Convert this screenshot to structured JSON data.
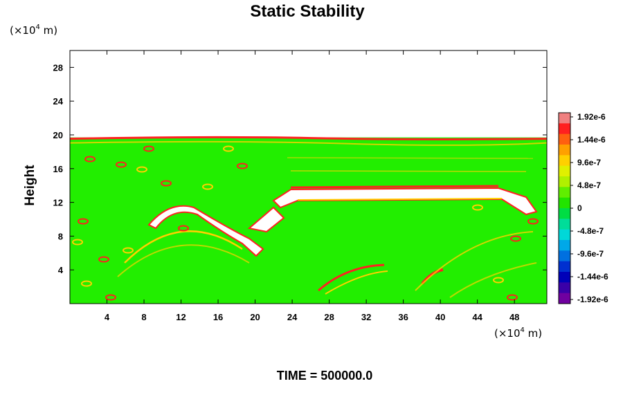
{
  "chart_data": {
    "type": "heatmap",
    "title": "Static Stability",
    "xlabel": "",
    "ylabel": "Height",
    "x_unit": {
      "prefix": "(×10",
      "exponent": "4",
      "suffix": " m)"
    },
    "y_unit": {
      "prefix": "(×10",
      "exponent": "4",
      "suffix": " m)"
    },
    "xlim": [
      0,
      51.5
    ],
    "ylim": [
      0,
      30
    ],
    "x_ticks": [
      "4",
      "8",
      "12",
      "16",
      "20",
      "24",
      "28",
      "32",
      "36",
      "40",
      "44",
      "48"
    ],
    "x_tick_values": [
      4,
      8,
      12,
      16,
      20,
      24,
      28,
      32,
      36,
      40,
      44,
      48
    ],
    "y_ticks": [
      "4",
      "8",
      "12",
      "16",
      "20",
      "24",
      "28"
    ],
    "y_tick_values": [
      4,
      8,
      12,
      16,
      20,
      24,
      28
    ],
    "colorbar": {
      "labels": [
        "1.92e-6",
        "1.44e-6",
        "9.6e-7",
        "4.8e-7",
        "0",
        "-4.8e-7",
        "-9.6e-7",
        "-1.44e-6",
        "-1.92e-6"
      ],
      "values": [
        1.92e-06,
        1.44e-06,
        9.6e-07,
        4.8e-07,
        0,
        -4.8e-07,
        -9.6e-07,
        -1.44e-06,
        -1.92e-06
      ],
      "colors_top_to_bottom": [
        "#f08080",
        "#ff2020",
        "#ff6010",
        "#ffa000",
        "#ffd000",
        "#e0f000",
        "#b0f000",
        "#60ee00",
        "#22e400",
        "#00dd44",
        "#00dd99",
        "#00d8d8",
        "#00a8e8",
        "#0070e0",
        "#0030d0",
        "#0000b8",
        "#3a00a8",
        "#7000a0"
      ],
      "range": [
        -1.92e-06,
        1.92e-06
      ]
    },
    "field_description": {
      "background_value_color": "#22ee00",
      "data_top_height": 19.7,
      "colors": {
        "positive_high": "#ff2020",
        "positive_mid": "#ffd000",
        "undefined": "#ffffff"
      }
    },
    "legend_position": "right"
  },
  "footer": {
    "time_label": "TIME = 500000.0"
  }
}
